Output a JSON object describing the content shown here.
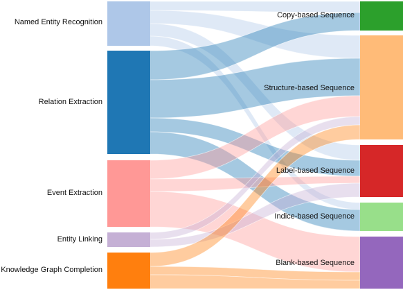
{
  "diagram": {
    "type": "sankey",
    "sources": [
      {
        "id": "ner",
        "label": "Named Entity Recognition",
        "color": "#aec7e8"
      },
      {
        "id": "re",
        "label": "Relation Extraction",
        "color": "#1f77b4"
      },
      {
        "id": "ee",
        "label": "Event Extraction",
        "color": "#ff9896"
      },
      {
        "id": "el",
        "label": "Entity Linking",
        "color": "#c5b0d5"
      },
      {
        "id": "kgc",
        "label": "Knowledge Graph Completion",
        "color": "#ff7f0e"
      }
    ],
    "targets": [
      {
        "id": "copy",
        "label": "Copy-based Sequence",
        "color": "#2ca02c"
      },
      {
        "id": "struct",
        "label": "Structure-based Sequence",
        "color": "#ffbb78"
      },
      {
        "id": "label",
        "label": "Label-based Sequence",
        "color": "#d62728"
      },
      {
        "id": "indice",
        "label": "Indice-based Sequence",
        "color": "#98df8a"
      },
      {
        "id": "blank",
        "label": "Blank-based Sequence",
        "color": "#9467bd"
      }
    ]
  }
}
